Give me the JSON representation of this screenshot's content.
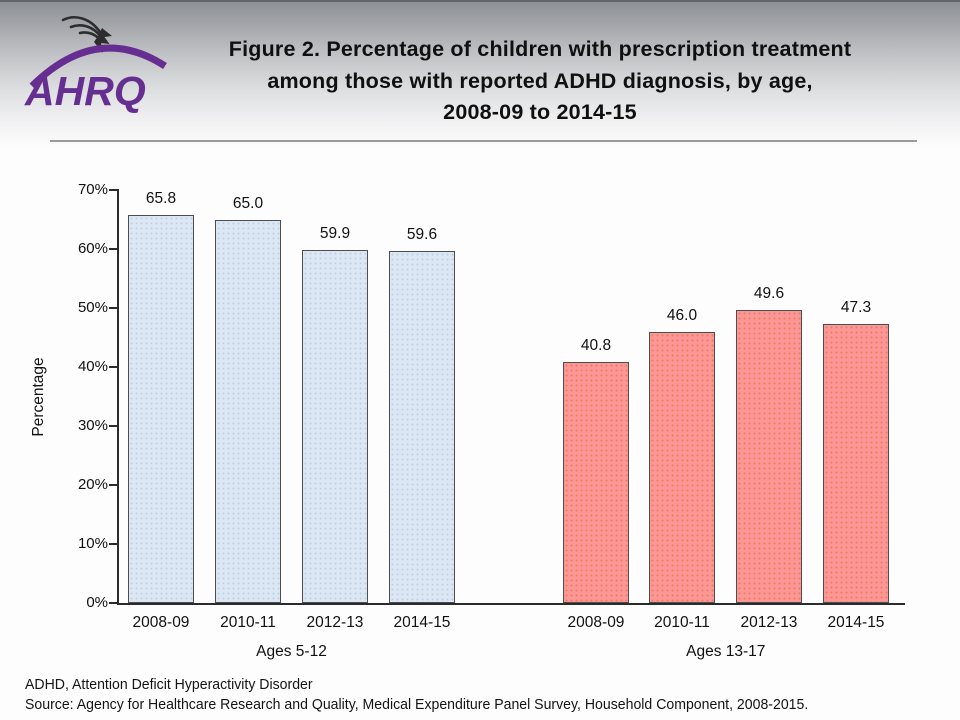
{
  "header": {
    "logo_text": "AHRQ",
    "logo_color": "#662e91",
    "title_lines": [
      "Figure 2. Percentage of children with prescription treatment",
      "among those with reported ADHD diagnosis, by age,",
      "2008-09 to 2014-15"
    ]
  },
  "chart_data": {
    "type": "bar",
    "title": "Figure 2. Percentage of children with prescription treatment among those with reported ADHD diagnosis, by age, 2008-09 to 2014-15",
    "xlabel": "",
    "ylabel": "Percentage",
    "ylim": [
      0,
      70
    ],
    "ytick_step": 10,
    "ytick_suffix": "%",
    "grid": false,
    "legend_position": "none",
    "categories": [
      "2008-09",
      "2010-11",
      "2012-13",
      "2014-15"
    ],
    "series": [
      {
        "name": "Ages 5-12",
        "values": [
          65.8,
          65.0,
          59.9,
          59.6
        ],
        "fill": "#dde7f3",
        "dot": "#bdd2e9",
        "border": "#4d4d4d"
      },
      {
        "name": "Ages 13-17",
        "values": [
          40.8,
          46.0,
          49.6,
          47.3
        ],
        "fill": "#fd9697",
        "dot": "#ef7e58",
        "border": "#4d4d4d"
      }
    ]
  },
  "footer": {
    "abbrev_note": "ADHD, Attention Deficit Hyperactivity Disorder",
    "source_note": "Source: Agency for Healthcare Research and Quality, Medical Expenditure Panel Survey, Household Component, 2008-2015."
  }
}
